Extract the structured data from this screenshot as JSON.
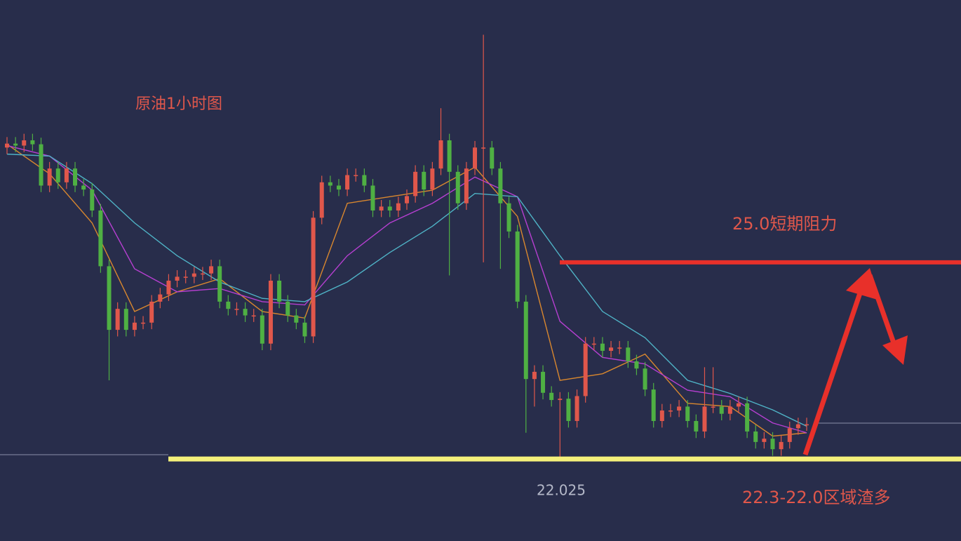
{
  "chart_data": {
    "type": "candlestick",
    "title": "原油1小时图",
    "resistance_label": "25.0短期阻力",
    "support_label": "22.3-22.0区域渣多",
    "resistance_level": 25.0,
    "support_level": 22.0,
    "up_color": "#e0574b",
    "down_color": "#4fb043",
    "ylim": [
      20.75,
      29.0
    ],
    "open": [
      26.75,
      26.81,
      26.78,
      26.86,
      26.8,
      26.17,
      26.43,
      26.22,
      26.43,
      26.17,
      26.11,
      25.79,
      24.94,
      23.97,
      24.29,
      23.97,
      24.08,
      24.08,
      24.4,
      24.51,
      24.72,
      24.78,
      24.78,
      24.83,
      24.83,
      24.94,
      24.4,
      24.29,
      24.29,
      24.19,
      24.19,
      23.76,
      24.72,
      24.4,
      24.19,
      24.08,
      23.87,
      25.68,
      26.22,
      26.17,
      26.11,
      26.33,
      26.33,
      26.17,
      25.79,
      25.85,
      25.79,
      25.9,
      26.01,
      26.38,
      26.11,
      26.43,
      26.86,
      26.38,
      25.9,
      26.43,
      26.75,
      26.75,
      26.43,
      25.9,
      25.47,
      24.4,
      23.22,
      23.33,
      23.01,
      22.9,
      22.92,
      22.58,
      22.96,
      23.76,
      23.76,
      23.65,
      23.7,
      23.7,
      23.49,
      23.38,
      23.06,
      22.58,
      22.74,
      22.74,
      22.8,
      22.58,
      22.42,
      22.8,
      22.8,
      22.69,
      22.8,
      22.85,
      22.42,
      22.26,
      22.31,
      22.15,
      22.26,
      22.47,
      22.53
    ],
    "high": [
      26.91,
      26.91,
      26.96,
      26.96,
      26.9,
      26.53,
      26.53,
      26.53,
      26.53,
      26.27,
      26.21,
      25.89,
      25.04,
      24.39,
      24.39,
      24.18,
      24.18,
      24.5,
      24.61,
      24.82,
      24.88,
      24.88,
      24.93,
      24.93,
      25.04,
      25.04,
      24.5,
      24.39,
      24.39,
      24.29,
      24.29,
      24.82,
      24.82,
      24.5,
      24.29,
      24.18,
      25.78,
      26.32,
      26.32,
      26.27,
      26.43,
      26.43,
      26.43,
      26.27,
      25.95,
      25.95,
      26.0,
      26.11,
      26.48,
      26.48,
      26.53,
      27.35,
      26.96,
      26.48,
      26.53,
      26.85,
      28.47,
      26.85,
      26.53,
      26.0,
      25.57,
      24.5,
      23.43,
      23.43,
      23.11,
      23.02,
      23.02,
      23.06,
      23.86,
      23.86,
      23.86,
      23.8,
      23.8,
      23.8,
      23.59,
      23.48,
      23.16,
      22.84,
      22.84,
      22.9,
      22.9,
      22.68,
      23.4,
      23.4,
      22.9,
      22.9,
      22.95,
      22.95,
      22.52,
      22.41,
      22.41,
      22.36,
      22.57,
      22.63,
      22.63
    ],
    "low": [
      26.65,
      26.68,
      26.68,
      26.7,
      26.07,
      26.07,
      26.12,
      26.12,
      26.07,
      26.01,
      25.69,
      24.84,
      23.2,
      23.87,
      23.87,
      23.87,
      23.98,
      23.98,
      24.3,
      24.41,
      24.62,
      24.68,
      24.68,
      24.73,
      24.73,
      24.3,
      24.19,
      24.19,
      24.09,
      24.09,
      23.66,
      23.66,
      24.3,
      24.09,
      23.98,
      23.77,
      23.77,
      25.58,
      26.07,
      26.01,
      26.01,
      26.23,
      26.07,
      25.69,
      25.69,
      25.69,
      25.69,
      25.8,
      25.91,
      26.01,
      26.01,
      26.33,
      24.8,
      25.8,
      25.8,
      26.33,
      25.0,
      26.33,
      24.9,
      25.37,
      24.3,
      22.4,
      22.8,
      22.91,
      22.8,
      22.025,
      22.48,
      22.48,
      22.86,
      23.66,
      23.55,
      23.55,
      23.6,
      23.39,
      23.28,
      22.96,
      22.48,
      22.48,
      22.64,
      22.64,
      22.48,
      22.32,
      22.32,
      22.7,
      22.59,
      22.59,
      22.7,
      22.32,
      22.16,
      22.16,
      22.05,
      22.05,
      22.16,
      22.37,
      22.43
    ],
    "close": [
      26.81,
      26.78,
      26.86,
      26.8,
      26.17,
      26.43,
      26.22,
      26.43,
      26.17,
      26.11,
      25.79,
      24.94,
      23.97,
      24.29,
      23.97,
      24.08,
      24.08,
      24.4,
      24.51,
      24.72,
      24.78,
      24.78,
      24.83,
      24.83,
      24.94,
      24.4,
      24.29,
      24.29,
      24.19,
      24.19,
      23.76,
      24.72,
      24.4,
      24.19,
      24.08,
      23.87,
      25.68,
      26.22,
      26.17,
      26.11,
      26.33,
      26.33,
      26.17,
      25.79,
      25.85,
      25.79,
      25.9,
      26.01,
      26.38,
      26.11,
      26.43,
      26.86,
      26.38,
      25.9,
      26.43,
      26.75,
      26.75,
      26.43,
      25.9,
      25.47,
      24.4,
      23.22,
      23.33,
      23.01,
      22.9,
      22.92,
      22.58,
      22.96,
      23.76,
      23.76,
      23.65,
      23.7,
      23.7,
      23.49,
      23.38,
      23.06,
      22.58,
      22.74,
      22.74,
      22.8,
      22.58,
      22.42,
      22.8,
      22.8,
      22.69,
      22.8,
      22.85,
      22.42,
      22.26,
      22.31,
      22.15,
      22.26,
      22.47,
      22.53,
      22.53
    ],
    "ma_index": [
      0,
      5,
      10,
      15,
      20,
      25,
      30,
      35,
      40,
      45,
      50,
      55,
      60,
      65,
      70,
      75,
      80,
      85,
      90,
      94
    ],
    "moving_averages": [
      {
        "color": "#d9872e",
        "values": [
          26.8,
          26.35,
          25.6,
          24.25,
          24.55,
          24.75,
          24.25,
          24.15,
          25.9,
          26.0,
          26.1,
          26.45,
          25.7,
          23.2,
          23.3,
          23.6,
          22.85,
          22.8,
          22.35,
          22.4
        ]
      },
      {
        "color": "#b63fd1",
        "values": [
          26.78,
          26.62,
          26.1,
          24.9,
          24.55,
          24.6,
          24.4,
          24.35,
          25.1,
          25.6,
          25.9,
          26.3,
          26.0,
          24.1,
          23.55,
          23.45,
          23.05,
          22.95,
          22.55,
          22.4
        ]
      },
      {
        "color": "#4fb3c6",
        "values": [
          26.65,
          26.62,
          26.2,
          25.6,
          25.1,
          24.7,
          24.45,
          24.4,
          24.7,
          25.15,
          25.55,
          26.05,
          26.0,
          25.1,
          24.25,
          23.85,
          23.2,
          23.0,
          22.75,
          22.5
        ]
      }
    ]
  }
}
